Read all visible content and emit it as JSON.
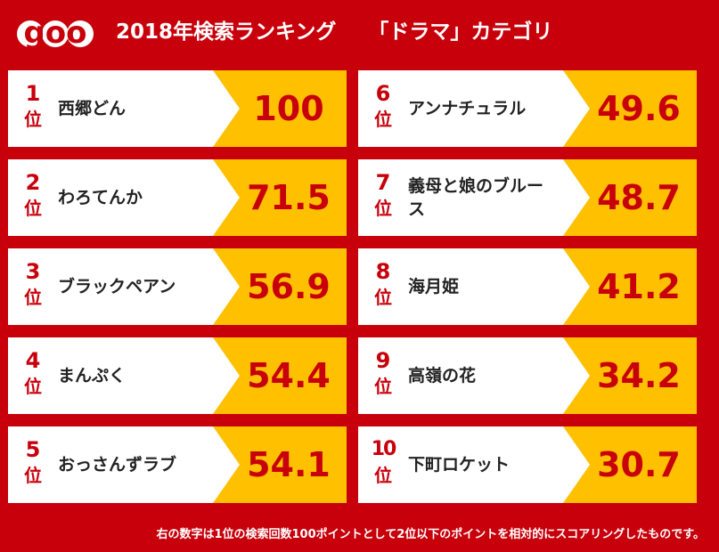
{
  "header": {
    "logo_text": "goo",
    "title": "2018年検索ランキング",
    "category": "「ドラマ」カテゴリ"
  },
  "colors": {
    "background": "#c8000b",
    "card": "#ffffff",
    "score_panel": "#ffc000",
    "rank_text": "#c8000b",
    "score_text": "#c8000b"
  },
  "rank_suffix": "位",
  "rankings": [
    {
      "rank": "1",
      "title": "西郷どん",
      "score": "100"
    },
    {
      "rank": "2",
      "title": "わろてんか",
      "score": "71.5"
    },
    {
      "rank": "3",
      "title": "ブラックペアン",
      "score": "56.9"
    },
    {
      "rank": "4",
      "title": "まんぷく",
      "score": "54.4"
    },
    {
      "rank": "5",
      "title": "おっさんずラブ",
      "score": "54.1"
    },
    {
      "rank": "6",
      "title": "アンナチュラル",
      "score": "49.6"
    },
    {
      "rank": "7",
      "title": "義母と娘のブルース",
      "score": "48.7"
    },
    {
      "rank": "8",
      "title": "海月姫",
      "score": "41.2"
    },
    {
      "rank": "9",
      "title": "高嶺の花",
      "score": "34.2"
    },
    {
      "rank": "10",
      "title": "下町ロケット",
      "score": "30.7"
    }
  ],
  "footer": {
    "note": "右の数字は1位の検索回数100ポイントとして2位以下のポイントを相対的にスコアリングしたものです。"
  }
}
